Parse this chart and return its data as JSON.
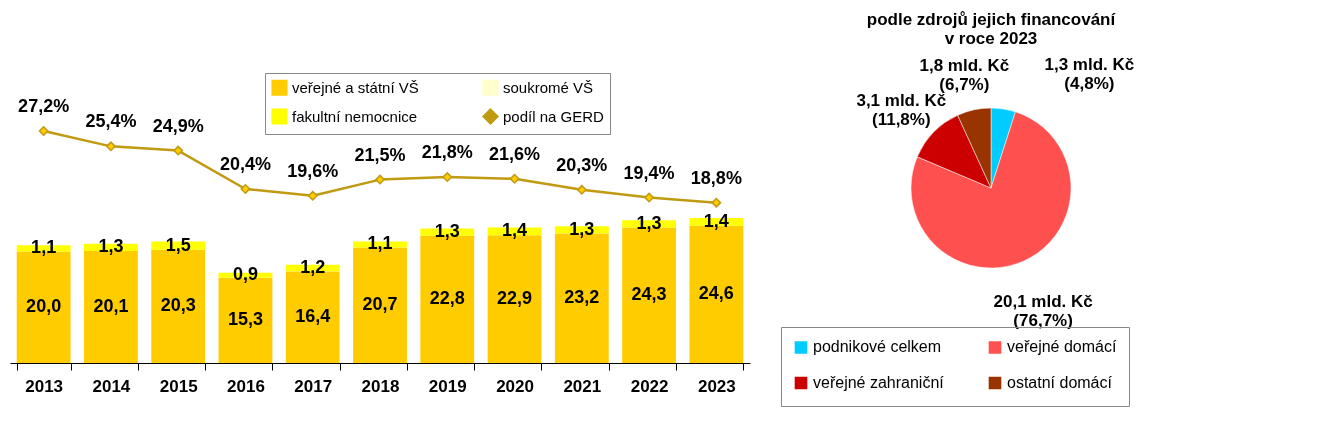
{
  "chart_data": [
    {
      "type": "bar",
      "stacked": true,
      "ylim": [
        0,
        52
      ],
      "y2lim": [
        0,
        34
      ],
      "legend": "top",
      "tick_labels": "x",
      "marker": "diamond",
      "categories": [
        "2013",
        "2014",
        "2015",
        "2016",
        "2017",
        "2018",
        "2019",
        "2020",
        "2021",
        "2022",
        "2023"
      ],
      "series": [
        {
          "name": "veřejné a státní VŠ",
          "color": "#ffcc00",
          "values": [
            20.0,
            20.1,
            20.3,
            15.3,
            16.4,
            20.7,
            22.8,
            22.9,
            23.2,
            24.3,
            24.6
          ],
          "value_labels": [
            "20,0",
            "20,1",
            "20,3",
            "15,3",
            "16,4",
            "20,7",
            "22,8",
            "22,9",
            "23,2",
            "24,3",
            "24,6"
          ]
        },
        {
          "name": "fakultní nemocnice",
          "color": "#ffff00",
          "values": [
            1.1,
            1.3,
            1.5,
            0.9,
            1.2,
            1.1,
            1.3,
            1.4,
            1.3,
            1.3,
            1.4
          ],
          "value_labels": [
            "1,1",
            "1,3",
            "1,5",
            "0,9",
            "1,2",
            "1,1",
            "1,3",
            "1,4",
            "1,3",
            "1,3",
            "1,4"
          ]
        },
        {
          "name": "soukromé VŠ",
          "color": "#ffffcc",
          "values": [
            null,
            null,
            null,
            null,
            null,
            null,
            null,
            null,
            null,
            null,
            null
          ]
        },
        {
          "name": "podíl na GERD",
          "type": "line",
          "axis": "y2",
          "color": "#c09a10",
          "values": [
            27.2,
            25.4,
            24.9,
            20.4,
            19.6,
            21.5,
            21.8,
            21.6,
            20.3,
            19.4,
            18.8
          ],
          "value_labels": [
            "27,2%",
            "25,4%",
            "24,9%",
            "20,4%",
            "19,6%",
            "21,5%",
            "21,8%",
            "21,6%",
            "20,3%",
            "19,4%",
            "18,8%"
          ]
        }
      ]
    },
    {
      "type": "pie",
      "title": "podle zdrojů jejich financování\nv roce 2023",
      "legend": "bottom",
      "categories": [
        "podnikové celkem",
        "veřejné domácí",
        "veřejné zahraniční",
        "ostatní domácí"
      ],
      "values": [
        1.3,
        20.1,
        3.1,
        1.8
      ],
      "colors": [
        "#00ccff",
        "#ff5050",
        "#cc0000",
        "#993300"
      ],
      "value_labels": [
        "1,3 mld. Kč\n(4,8%)",
        "20,1 mld. Kč\n(76,7%)",
        "3,1 mld. Kč\n(11,8%)",
        "1,8 mld. Kč\n(6,7%)"
      ]
    }
  ]
}
